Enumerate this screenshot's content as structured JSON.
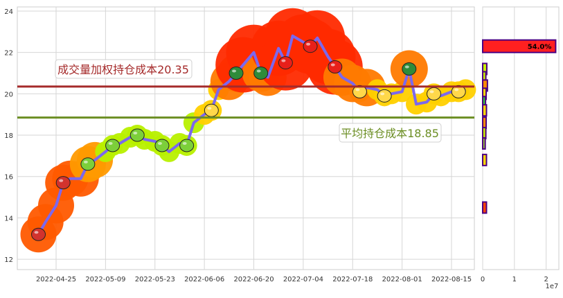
{
  "chart_data": [
    {
      "type": "line",
      "title": "",
      "xlabel": "",
      "ylabel": "",
      "ylim": [
        11.5,
        24.2
      ],
      "yticks": [
        12,
        14,
        16,
        18,
        20,
        22,
        24
      ],
      "xticks": [
        "2022-04-25",
        "2022-05-09",
        "2022-05-23",
        "2022-06-06",
        "2022-06-20",
        "2022-07-04",
        "2022-07-18",
        "2022-08-01",
        "2022-08-15"
      ],
      "grid": true,
      "series": [
        {
          "x": [
            "2022-04-20",
            "2022-04-22",
            "2022-04-25",
            "2022-04-27",
            "2022-04-29",
            "2022-05-02",
            "2022-05-04",
            "2022-05-06",
            "2022-05-09",
            "2022-05-11",
            "2022-05-13",
            "2022-05-16",
            "2022-05-18",
            "2022-05-20",
            "2022-05-23",
            "2022-05-25",
            "2022-05-27",
            "2022-05-30",
            "2022-06-01",
            "2022-06-03",
            "2022-06-06",
            "2022-06-08",
            "2022-06-10",
            "2022-06-13",
            "2022-06-15",
            "2022-06-17",
            "2022-06-20",
            "2022-06-22",
            "2022-06-24",
            "2022-06-27",
            "2022-06-29",
            "2022-07-01",
            "2022-07-04",
            "2022-07-06",
            "2022-07-08",
            "2022-07-11",
            "2022-07-13",
            "2022-07-15",
            "2022-07-18",
            "2022-07-20",
            "2022-07-22",
            "2022-07-25",
            "2022-07-27",
            "2022-07-29",
            "2022-08-01",
            "2022-08-03",
            "2022-08-05",
            "2022-08-08",
            "2022-08-10",
            "2022-08-12",
            "2022-08-15",
            "2022-08-17",
            "2022-08-19"
          ],
          "values": [
            13.2,
            13.8,
            14.6,
            15.7,
            15.9,
            15.9,
            16.6,
            16.8,
            17.2,
            17.5,
            17.6,
            17.9,
            18.0,
            17.8,
            17.7,
            17.5,
            17.2,
            17.6,
            17.5,
            18.6,
            19.0,
            19.2,
            20.2,
            20.6,
            21.0,
            21.4,
            22.0,
            21.0,
            20.8,
            22.2,
            21.5,
            22.8,
            22.5,
            22.3,
            22.7,
            21.8,
            21.3,
            20.8,
            20.5,
            20.1,
            20.3,
            20.2,
            19.9,
            20.0,
            20.1,
            21.2,
            19.5,
            19.6,
            20.0,
            19.9,
            20.1,
            20.1,
            20.2
          ]
        }
      ],
      "annotations": [
        {
          "label": "成交量加权持仓成本20.35",
          "value": 20.35,
          "color": "#a52a2a"
        },
        {
          "label": "平均持仓成本18.85",
          "value": 18.85,
          "color": "#6b8e23"
        }
      ]
    },
    {
      "type": "bar",
      "orientation": "horizontal",
      "xlim": [
        0,
        24000000
      ],
      "xticks": [
        0,
        1,
        2
      ],
      "offset_label": "1e7",
      "bars": [
        {
          "price": 22.3,
          "value": 23000000,
          "color": "#ff2020",
          "label": "54.0%"
        },
        {
          "price": 21.2,
          "value": 1300000,
          "color": "#c8f000"
        },
        {
          "price": 20.8,
          "value": 1000000,
          "color": "#c8f000"
        },
        {
          "price": 20.4,
          "value": 1500000,
          "color": "#ff8c00"
        },
        {
          "price": 20.0,
          "value": 1100000,
          "color": "#ffd700"
        },
        {
          "price": 19.6,
          "value": 900000,
          "color": "#32cd32"
        },
        {
          "price": 19.2,
          "value": 1200000,
          "color": "#ffd700"
        },
        {
          "price": 18.6,
          "value": 1100000,
          "color": "#ff8c00"
        },
        {
          "price": 18.1,
          "value": 1000000,
          "color": "#c8f000"
        },
        {
          "price": 17.6,
          "value": 800000,
          "color": "#9acd32"
        },
        {
          "price": 16.8,
          "value": 1200000,
          "color": "#ffd700"
        },
        {
          "price": 14.5,
          "value": 1200000,
          "color": "#ff4500"
        }
      ]
    }
  ]
}
